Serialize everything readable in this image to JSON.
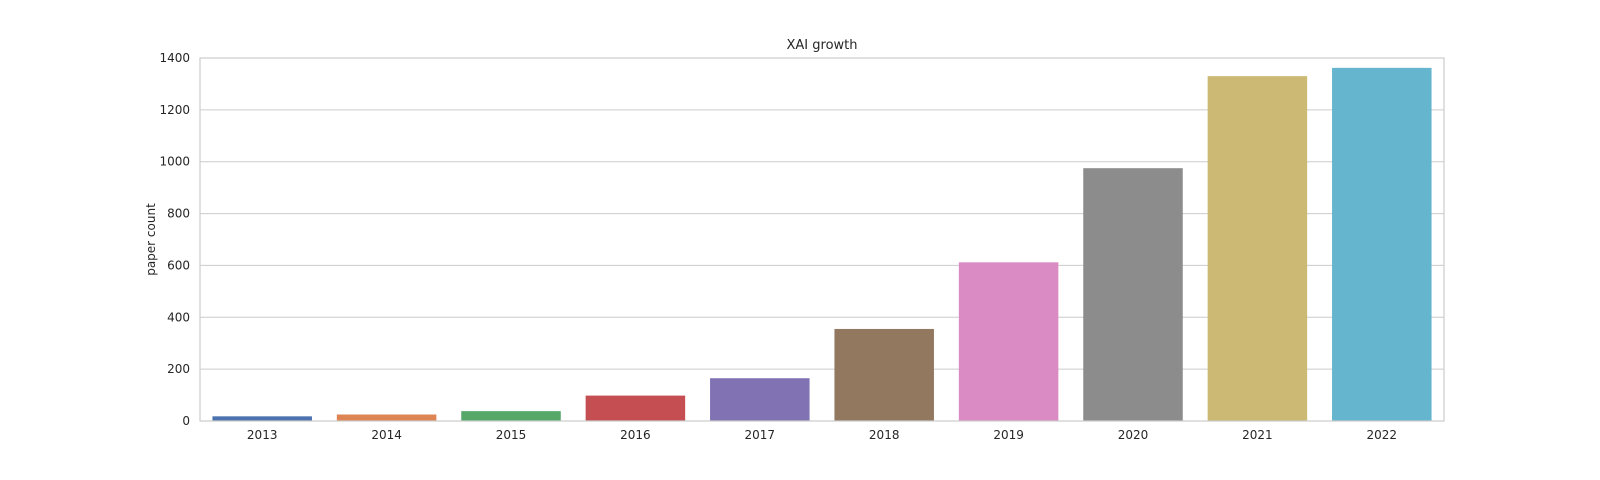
{
  "chart_data": {
    "type": "bar",
    "title": "XAI growth",
    "xlabel": "",
    "ylabel": "paper count",
    "categories": [
      "2013",
      "2014",
      "2015",
      "2016",
      "2017",
      "2018",
      "2019",
      "2020",
      "2021",
      "2022"
    ],
    "values": [
      18,
      25,
      38,
      98,
      165,
      355,
      612,
      975,
      1330,
      1362
    ],
    "ylim": [
      0,
      1400
    ],
    "yticks": [
      0,
      200,
      400,
      600,
      800,
      1000,
      1200,
      1400
    ],
    "grid": true,
    "colors": [
      "#4c72b0",
      "#dd8452",
      "#55a868",
      "#c44e52",
      "#8172b3",
      "#937860",
      "#da8bc3",
      "#8c8c8c",
      "#ccb974",
      "#64b5cd"
    ],
    "grid_color": "#cccccc",
    "frame_color": "#cccccc"
  }
}
